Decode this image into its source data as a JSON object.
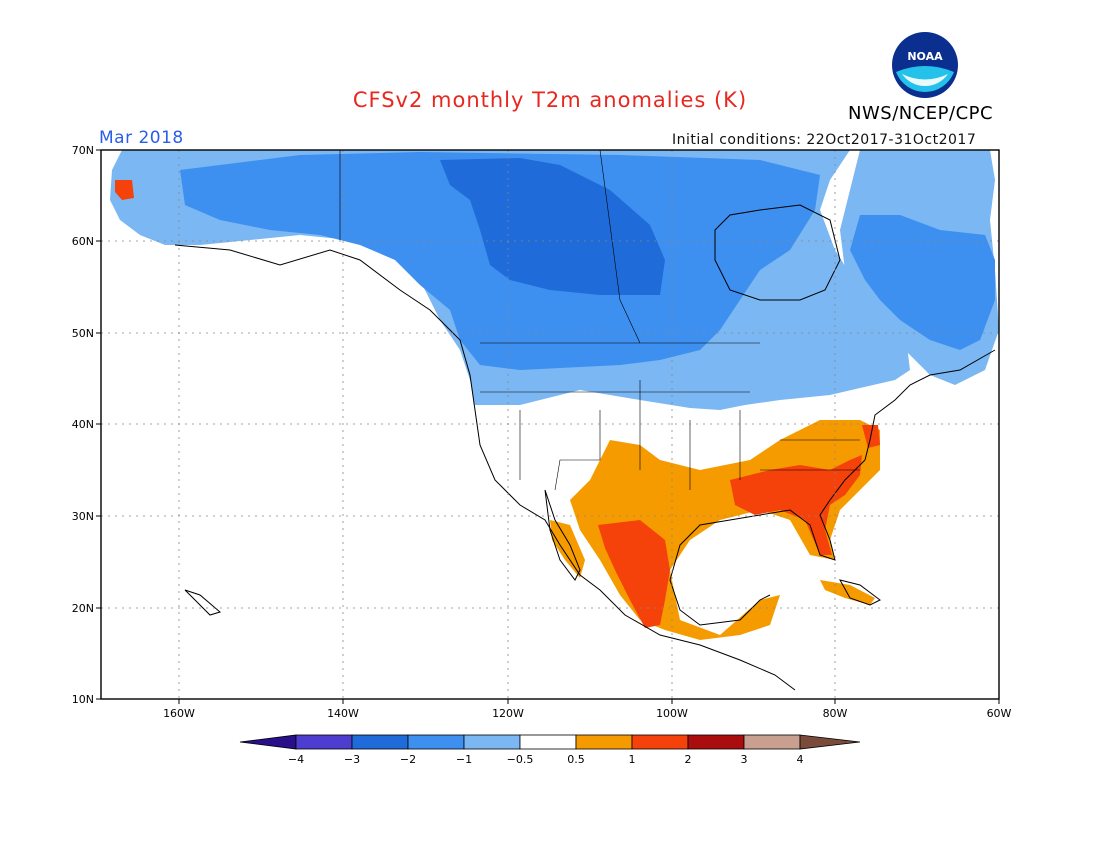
{
  "header": {
    "title": "CFSv2 monthly T2m anomalies (K)",
    "agency": "NWS/NCEP/CPC",
    "valid_month": "Mar 2018",
    "initial_conditions": "Initial conditions: 22Oct2017-31Oct2017"
  },
  "logo": {
    "text": "NOAA"
  },
  "map": {
    "lat_labels": [
      "70N",
      "60N",
      "50N",
      "40N",
      "30N",
      "20N",
      "10N"
    ],
    "lon_labels": [
      "160W",
      "140W",
      "120W",
      "100W",
      "80W",
      "60W"
    ]
  },
  "colorbar": {
    "tick_labels": [
      "−4",
      "−3",
      "−2",
      "−1",
      "−0.5",
      "0.5",
      "1",
      "2",
      "3",
      "4"
    ],
    "colors": [
      "#2a0f8a",
      "#4d3ed0",
      "#1f6bd9",
      "#3d8ff0",
      "#7ab7f3",
      "#ffffff",
      "#f59b00",
      "#f5410a",
      "#a90d0d",
      "#c9a090",
      "#7a4a3a"
    ]
  }
}
